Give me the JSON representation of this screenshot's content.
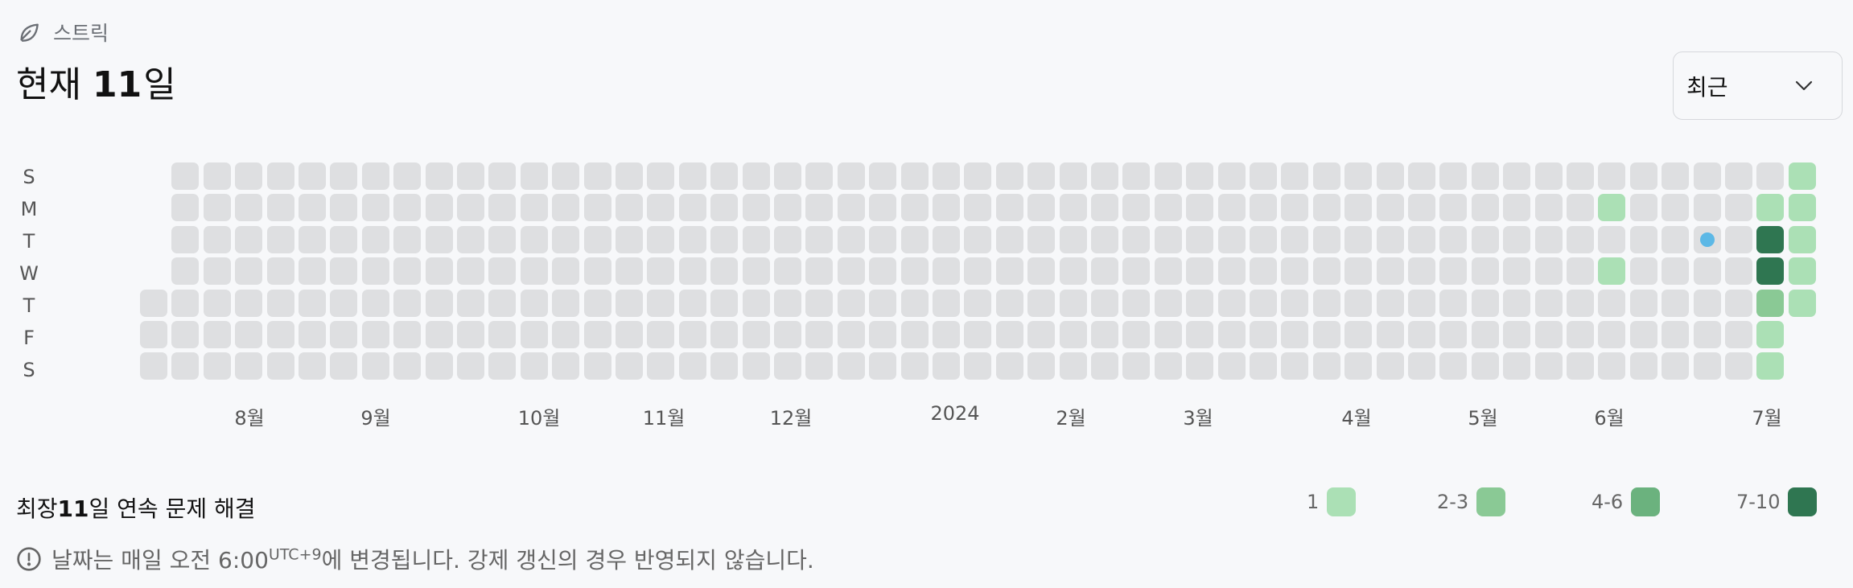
{
  "header": {
    "section_title": "스트릭",
    "current_prefix": "현재",
    "current_count": "11",
    "current_unit": "일"
  },
  "dropdown": {
    "selected": "최근"
  },
  "day_labels": [
    "S",
    "M",
    "T",
    "W",
    "T",
    "F",
    "S"
  ],
  "months": [
    "8월",
    "9월",
    "10월",
    "11월",
    "12월",
    "2024",
    "2월",
    "3월",
    "4월",
    "5월",
    "6월",
    "7월"
  ],
  "heatmap": {
    "weeks": 53,
    "first_week_start_day": 4,
    "last_week_end_day": 4,
    "solved": [
      {
        "week": 46,
        "day": 1,
        "level": 1
      },
      {
        "week": 46,
        "day": 3,
        "level": 1
      },
      {
        "week": 51,
        "day": 0,
        "level": 0
      },
      {
        "week": 51,
        "day": 1,
        "level": 1
      },
      {
        "week": 51,
        "day": 2,
        "level": 4
      },
      {
        "week": 51,
        "day": 3,
        "level": 4
      },
      {
        "week": 51,
        "day": 4,
        "level": 2
      },
      {
        "week": 51,
        "day": 5,
        "level": 1
      },
      {
        "week": 51,
        "day": 6,
        "level": 1
      },
      {
        "week": 52,
        "day": 0,
        "level": 1
      },
      {
        "week": 52,
        "day": 1,
        "level": 1
      },
      {
        "week": 52,
        "day": 2,
        "level": 1
      },
      {
        "week": 52,
        "day": 3,
        "level": 1
      },
      {
        "week": 52,
        "day": 4,
        "level": 1
      }
    ],
    "marker": {
      "week": 49,
      "day": 2
    }
  },
  "longest": {
    "prefix": "최장 ",
    "count": "11",
    "suffix": "일 연속 문제 해결"
  },
  "legend": [
    {
      "label": "1",
      "color": "#abe0b5"
    },
    {
      "label": "2-3",
      "color": "#8ac995"
    },
    {
      "label": "4-6",
      "color": "#6bb27e"
    },
    {
      "label": "7-10",
      "color": "#2f7651"
    }
  ],
  "notice": {
    "text": "날짜는 매일 오전 6:00",
    "sup": "UTC+9",
    "text2": "에 변경됩니다. 강제 갱신의 경우 반영되지 않습니다."
  },
  "colors": {
    "empty": "#dedfe1",
    "marker": "#5cb8e6"
  }
}
